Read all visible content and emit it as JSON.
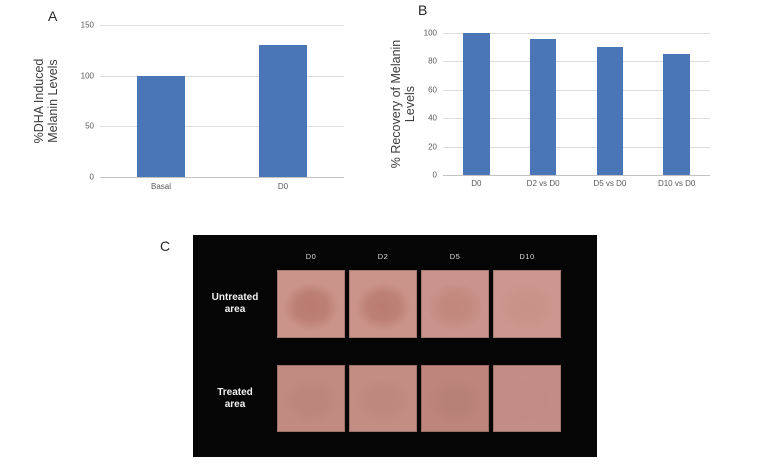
{
  "figure": {
    "background": "#ffffff",
    "panel_a": {
      "letter": "A"
    },
    "panel_b": {
      "letter": "B"
    },
    "panel_c": {
      "letter": "C",
      "background": "#050505",
      "text_color": "#d9d9d9",
      "column_labels": [
        "D0",
        "D2",
        "D5",
        "D10"
      ],
      "rows": [
        {
          "name": "untreated",
          "label_lines": [
            "Untreated",
            "area"
          ],
          "patches": [
            {
              "day": "D0",
              "base": "#cb948b",
              "spot": "#b5766a",
              "spot_alpha": 0.85
            },
            {
              "day": "D2",
              "base": "#cb948b",
              "spot": "#b5766a",
              "spot_alpha": 0.8
            },
            {
              "day": "D5",
              "base": "#ca948c",
              "spot": "#ba7d70",
              "spot_alpha": 0.55
            },
            {
              "day": "D10",
              "base": "#cc978e",
              "spot": "#c1897c",
              "spot_alpha": 0.35
            }
          ]
        },
        {
          "name": "treated",
          "label_lines": [
            "Treated",
            "area"
          ],
          "patches": [
            {
              "day": "D0",
              "base": "#c18b81",
              "spot": "#b47d72",
              "spot_alpha": 0.4
            },
            {
              "day": "D2",
              "base": "#c28d83",
              "spot": "#b47d72",
              "spot_alpha": 0.35
            },
            {
              "day": "D5",
              "base": "#bd857c",
              "spot": "#b07a70",
              "spot_alpha": 0.4
            },
            {
              "day": "D10",
              "base": "#c28d84",
              "spot": "#bb867c",
              "spot_alpha": 0.15
            }
          ]
        }
      ]
    }
  },
  "chart_data": [
    {
      "type": "bar",
      "panel": "A",
      "title": "",
      "categories": [
        "Basal",
        "D0"
      ],
      "values": [
        100,
        130
      ],
      "xlabel": "",
      "ylabel": "%DHA Induced Melanin Levels",
      "ylabel_lines": [
        "%DHA Induced",
        "Melanin Levels"
      ],
      "yticks": [
        0,
        50,
        100,
        150
      ],
      "ylim": [
        0,
        150
      ],
      "bar_color": "#4a76b8",
      "gridlines": true,
      "legend": "none"
    },
    {
      "type": "bar",
      "panel": "B",
      "title": "",
      "categories": [
        "D0",
        "D2 vs D0",
        "D5 vs D0",
        "D10 vs D0"
      ],
      "values": [
        100,
        96,
        90,
        85
      ],
      "xlabel": "",
      "ylabel": "% Recovery of Melanin Levels",
      "ylabel_lines": [
        "% Recovery of Melanin",
        "Levels"
      ],
      "yticks": [
        0,
        20,
        40,
        60,
        80,
        100
      ],
      "ylim": [
        0,
        100
      ],
      "bar_color": "#4a76b8",
      "gridlines": true,
      "legend": "none"
    }
  ]
}
